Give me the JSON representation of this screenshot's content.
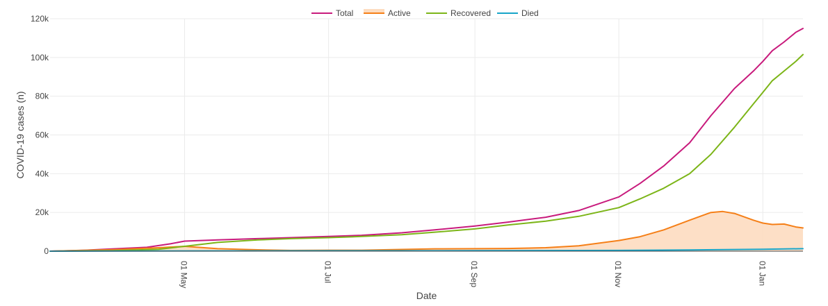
{
  "chart_data": {
    "type": "line",
    "title": "",
    "xlabel": "Date",
    "ylabel": "COVID-19 cases (n)",
    "ylim": [
      0,
      120000
    ],
    "y_ticks": [
      0,
      20000,
      40000,
      60000,
      80000,
      100000,
      120000
    ],
    "y_tick_labels": [
      "0",
      "20k",
      "40k",
      "60k",
      "80k",
      "100k",
      "120k"
    ],
    "xlim": [
      "2020-03-05",
      "2021-01-18"
    ],
    "x_ticks": [
      "2020-05-01",
      "2020-07-01",
      "2020-09-01",
      "2020-11-01",
      "2021-01-01"
    ],
    "x_tick_labels": [
      "01 May",
      "01 Jul",
      "01 Sep",
      "01 Nov",
      "01 Jan"
    ],
    "grid": true,
    "legend_position": "top-center",
    "series": [
      {
        "name": "Total",
        "color": "#c81a7c",
        "points": [
          [
            "2020-03-05",
            0
          ],
          [
            "2020-03-20",
            500
          ],
          [
            "2020-04-01",
            1200
          ],
          [
            "2020-04-15",
            2000
          ],
          [
            "2020-04-25",
            3800
          ],
          [
            "2020-05-01",
            5200
          ],
          [
            "2020-05-15",
            5800
          ],
          [
            "2020-06-01",
            6500
          ],
          [
            "2020-06-15",
            7000
          ],
          [
            "2020-07-01",
            7600
          ],
          [
            "2020-07-15",
            8200
          ],
          [
            "2020-08-01",
            9500
          ],
          [
            "2020-08-15",
            11000
          ],
          [
            "2020-09-01",
            13000
          ],
          [
            "2020-09-15",
            15000
          ],
          [
            "2020-10-01",
            17500
          ],
          [
            "2020-10-15",
            21000
          ],
          [
            "2020-11-01",
            28000
          ],
          [
            "2020-11-10",
            35000
          ],
          [
            "2020-11-20",
            44000
          ],
          [
            "2020-12-01",
            56000
          ],
          [
            "2020-12-10",
            70000
          ],
          [
            "2020-12-20",
            84000
          ],
          [
            "2020-12-28",
            93000
          ],
          [
            "2021-01-01",
            98000
          ],
          [
            "2021-01-05",
            103500
          ],
          [
            "2021-01-10",
            108000
          ],
          [
            "2021-01-15",
            113000
          ],
          [
            "2021-01-18",
            115000
          ]
        ]
      },
      {
        "name": "Active",
        "color": "#f57f17",
        "fill": "#fddcc0",
        "points": [
          [
            "2020-03-05",
            0
          ],
          [
            "2020-04-01",
            800
          ],
          [
            "2020-04-20",
            1800
          ],
          [
            "2020-05-01",
            2500
          ],
          [
            "2020-05-15",
            1300
          ],
          [
            "2020-06-01",
            700
          ],
          [
            "2020-06-15",
            400
          ],
          [
            "2020-07-01",
            500
          ],
          [
            "2020-07-15",
            500
          ],
          [
            "2020-08-01",
            900
          ],
          [
            "2020-08-15",
            1200
          ],
          [
            "2020-09-01",
            1300
          ],
          [
            "2020-09-15",
            1400
          ],
          [
            "2020-10-01",
            1800
          ],
          [
            "2020-10-15",
            2800
          ],
          [
            "2020-11-01",
            5500
          ],
          [
            "2020-11-10",
            7500
          ],
          [
            "2020-11-20",
            11000
          ],
          [
            "2020-12-01",
            16000
          ],
          [
            "2020-12-10",
            20000
          ],
          [
            "2020-12-15",
            20500
          ],
          [
            "2020-12-20",
            19500
          ],
          [
            "2020-12-28",
            16000
          ],
          [
            "2021-01-01",
            14500
          ],
          [
            "2021-01-05",
            13800
          ],
          [
            "2021-01-10",
            14000
          ],
          [
            "2021-01-15",
            12500
          ],
          [
            "2021-01-18",
            12000
          ]
        ]
      },
      {
        "name": "Recovered",
        "color": "#7cb518",
        "points": [
          [
            "2020-03-05",
            0
          ],
          [
            "2020-04-01",
            300
          ],
          [
            "2020-04-20",
            1000
          ],
          [
            "2020-05-01",
            2500
          ],
          [
            "2020-05-15",
            4500
          ],
          [
            "2020-06-01",
            5800
          ],
          [
            "2020-06-15",
            6500
          ],
          [
            "2020-07-01",
            7000
          ],
          [
            "2020-07-15",
            7600
          ],
          [
            "2020-08-01",
            8500
          ],
          [
            "2020-08-15",
            9800
          ],
          [
            "2020-09-01",
            11500
          ],
          [
            "2020-09-15",
            13500
          ],
          [
            "2020-10-01",
            15500
          ],
          [
            "2020-10-15",
            18000
          ],
          [
            "2020-11-01",
            22500
          ],
          [
            "2020-11-10",
            27000
          ],
          [
            "2020-11-20",
            32500
          ],
          [
            "2020-12-01",
            40000
          ],
          [
            "2020-12-10",
            50000
          ],
          [
            "2020-12-20",
            64000
          ],
          [
            "2020-12-28",
            76000
          ],
          [
            "2021-01-01",
            82000
          ],
          [
            "2021-01-05",
            88000
          ],
          [
            "2021-01-10",
            93000
          ],
          [
            "2021-01-15",
            98000
          ],
          [
            "2021-01-18",
            101500
          ]
        ]
      },
      {
        "name": "Died",
        "color": "#17a5c9",
        "points": [
          [
            "2020-03-05",
            0
          ],
          [
            "2020-05-01",
            150
          ],
          [
            "2020-07-01",
            200
          ],
          [
            "2020-09-01",
            250
          ],
          [
            "2020-11-01",
            400
          ],
          [
            "2020-12-01",
            600
          ],
          [
            "2021-01-01",
            1000
          ],
          [
            "2021-01-18",
            1300
          ]
        ]
      }
    ]
  }
}
